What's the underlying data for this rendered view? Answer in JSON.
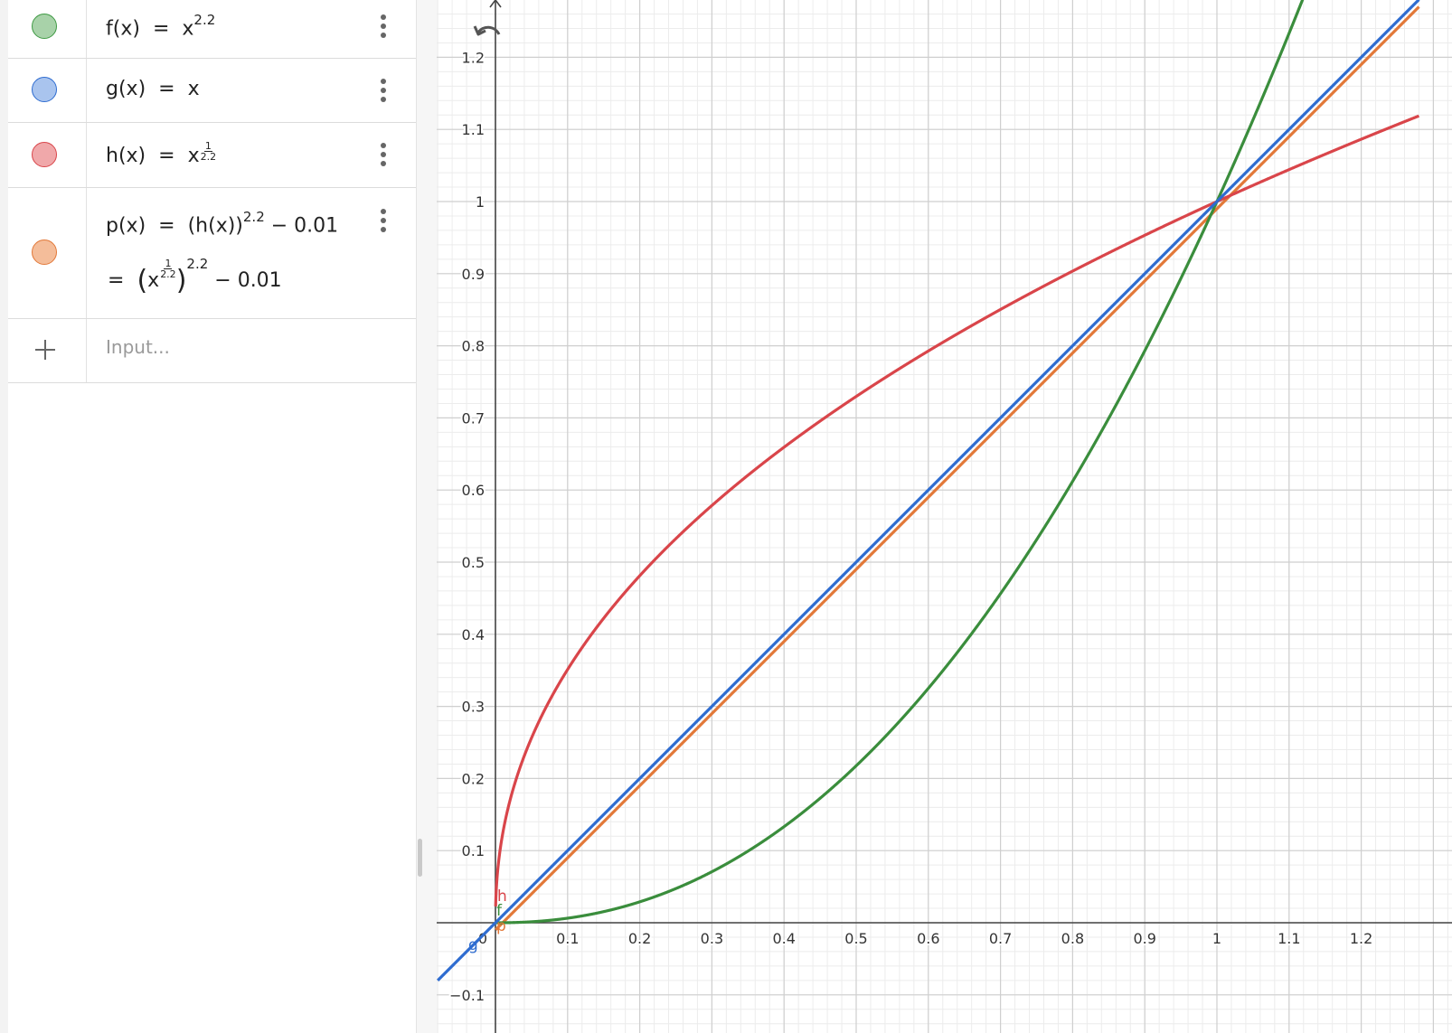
{
  "algebra": {
    "rows": [
      {
        "id": "f",
        "color": "#3f9a44",
        "fill": "#a8d2a9",
        "lhs": "f(x)",
        "eq": "=",
        "base": "x",
        "exp": "2.2"
      },
      {
        "id": "g",
        "color": "#2e6cd0",
        "fill": "#a9c4ee",
        "lhs": "g(x)",
        "eq": "=",
        "rhs": "x"
      },
      {
        "id": "h",
        "color": "#d9454a",
        "fill": "#f0a8aa",
        "lhs": "h(x)",
        "eq": "=",
        "base": "x",
        "exp_num": "1",
        "exp_den": "2.2"
      },
      {
        "id": "p",
        "color": "#e27838",
        "fill": "#f4bd9a",
        "lhs": "p(x)",
        "eq": "=",
        "line1": "(h(x))",
        "line1_exp": "2.2",
        "line1_tail": "− 0.01",
        "line2_eq": "=",
        "line2_base": "x",
        "line2_exp_num": "1",
        "line2_exp_den": "2.2",
        "line2_outer_exp": "2.2",
        "line2_tail": "− 0.01"
      }
    ],
    "input": {
      "placeholder": "Input..."
    }
  },
  "chart_data": {
    "type": "line",
    "xlim": [
      -0.08,
      1.28
    ],
    "ylim": [
      -0.12,
      1.27
    ],
    "grid": true,
    "x_ticks": [
      "0",
      "0.1",
      "0.2",
      "0.3",
      "0.4",
      "0.5",
      "0.6",
      "0.7",
      "0.8",
      "0.9",
      "1",
      "1.1",
      "1.2"
    ],
    "y_ticks": [
      "-0.1",
      "0.1",
      "0.2",
      "0.3",
      "0.4",
      "0.5",
      "0.6",
      "0.7",
      "0.8",
      "0.9",
      "1",
      "1.1",
      "1.2"
    ],
    "series": [
      {
        "name": "f",
        "formula": "x^2.2",
        "color": "#3a8d3c"
      },
      {
        "name": "g",
        "formula": "x",
        "color": "#2e6cd0"
      },
      {
        "name": "h",
        "formula": "x^(1/2.2)",
        "color": "#d9454a"
      },
      {
        "name": "p",
        "formula": "(h(x))^2.2 - 0.01",
        "color": "#e27838"
      }
    ]
  }
}
